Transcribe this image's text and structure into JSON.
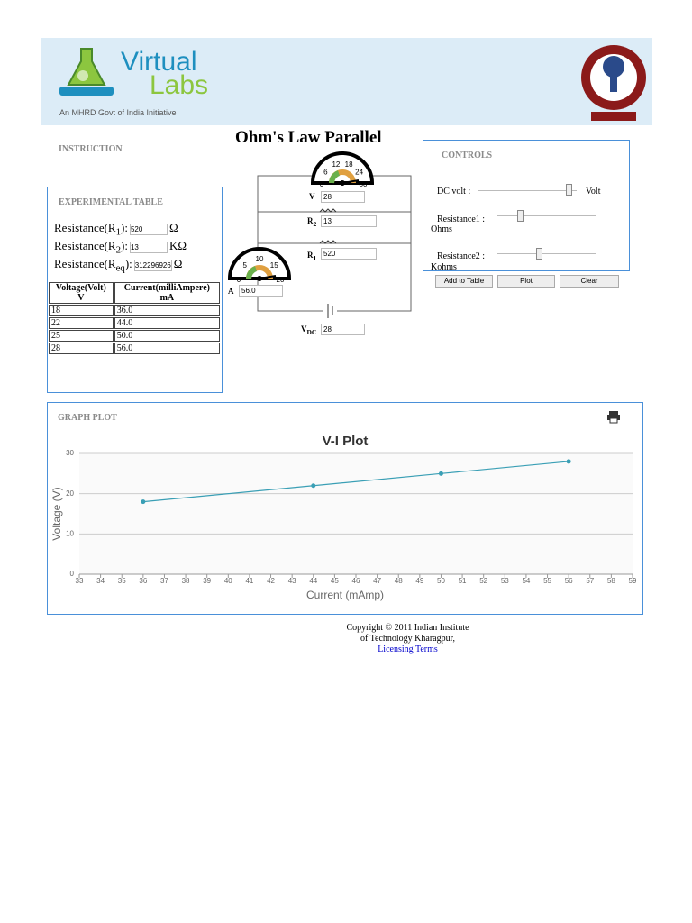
{
  "header": {
    "logo_word1": "Virtual",
    "logo_word2": "Labs",
    "tagline": "An MHRD Govt of India Initiative"
  },
  "page_title": "Ohm's Law Parallel",
  "instruction": "INSTRUCTION",
  "experiment": {
    "title": "EXPERIMENTAL TABLE",
    "resistances": [
      {
        "label": "Resistance(R",
        "sub": "1",
        "suffix": "):",
        "value": "520",
        "unit": "Ω"
      },
      {
        "label": "Resistance(R",
        "sub": "2",
        "suffix": "):",
        "value": "13",
        "unit": "KΩ"
      },
      {
        "label": "Resistance(R",
        "sub": "eq",
        "suffix": "):",
        "value": "312296926",
        "unit": "Ω"
      }
    ],
    "columns": [
      [
        "Voltage(Volt)",
        "V"
      ],
      [
        "Current(milliAmpere)",
        "mA"
      ]
    ],
    "rows": [
      [
        "18",
        "36.0"
      ],
      [
        "22",
        "44.0"
      ],
      [
        "25",
        "50.0"
      ],
      [
        "28",
        "56.0"
      ]
    ]
  },
  "circuit": {
    "voltmeter": {
      "label": "V",
      "scale": [
        0,
        6,
        12,
        18,
        24,
        30
      ],
      "reading": "28"
    },
    "ammeter": {
      "label": "A",
      "scale": [
        0,
        5,
        10,
        15,
        20
      ],
      "reading": "56.0"
    },
    "r2": {
      "label": "R",
      "sub": "2",
      "value": "13"
    },
    "r1": {
      "label": "R",
      "sub": "1",
      "value": "520"
    },
    "vdc": {
      "label": "V",
      "sub": "DC",
      "value": "28"
    }
  },
  "controls": {
    "title": "CONTROLS",
    "dc_volt": "DC volt :",
    "dc_unit": "Volt",
    "res1": "Resistance1 :",
    "res1_unit": "Ohms",
    "res2": "Resistance2 :",
    "res2_unit": "Kohms",
    "buttons": [
      "Add to Table",
      "Plot",
      "Clear"
    ]
  },
  "graph_section": "GRAPH PLOT",
  "chart_data": {
    "type": "line",
    "title": "V-I Plot",
    "x_label": "Current (mAmp)",
    "y_label": "Voltage (V)",
    "x": [
      36,
      44,
      50,
      56
    ],
    "values": [
      18,
      22,
      25,
      28
    ],
    "color": "#3a9fb5",
    "xlim": [
      33,
      59
    ],
    "xticks": [
      33,
      34,
      35,
      36,
      37,
      38,
      39,
      40,
      41,
      42,
      43,
      44,
      45,
      46,
      47,
      48,
      49,
      50,
      51,
      52,
      53,
      54,
      55,
      56,
      57,
      58,
      59
    ],
    "ylim": [
      0,
      30
    ],
    "yticks": [
      0,
      10,
      20,
      30
    ],
    "grid": true
  },
  "footer": {
    "line1": "Copyright © 2011 Indian Institute",
    "line2": "of Technology Kharagpur,",
    "link": "Licensing Terms"
  }
}
